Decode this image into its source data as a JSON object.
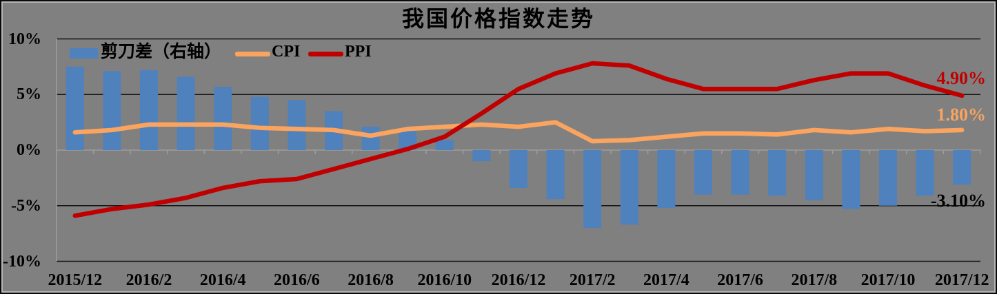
{
  "title": "我国价格指数走势",
  "colors": {
    "background": "#808080",
    "bar": "#4F81BD",
    "cpi": "#FAA45F",
    "ppi": "#C00000",
    "gridline": "#141414",
    "zero_axis": "#9E9E9E",
    "text": "#000000"
  },
  "legend": {
    "items": [
      {
        "label": "剪刀差（右轴）",
        "type": "bar",
        "color": "#4F81BD"
      },
      {
        "label": "CPI",
        "type": "line",
        "color": "#FAA45F"
      },
      {
        "label": "PPI",
        "type": "line",
        "color": "#C00000"
      }
    ]
  },
  "end_labels": {
    "ppi": {
      "text": "4.90%",
      "color": "#C00000"
    },
    "cpi": {
      "text": "1.80%",
      "color": "#FAA45F"
    },
    "scissors": {
      "text": "-3.10%",
      "color": "#000000"
    }
  },
  "chart_data": {
    "type": "combo",
    "title": "我国价格指数走势",
    "x": [
      "2015/12",
      "2016/1",
      "2016/2",
      "2016/3",
      "2016/4",
      "2016/5",
      "2016/6",
      "2016/7",
      "2016/8",
      "2016/9",
      "2016/10",
      "2016/11",
      "2016/12",
      "2017/1",
      "2017/2",
      "2017/3",
      "2017/4",
      "2017/5",
      "2017/6",
      "2017/7",
      "2017/8",
      "2017/9",
      "2017/10",
      "2017/11",
      "2017/12"
    ],
    "x_tick_labels": [
      "2015/12",
      "2016/2",
      "2016/4",
      "2016/6",
      "2016/8",
      "2016/10",
      "2016/12",
      "2017/2",
      "2017/4",
      "2017/6",
      "2017/8",
      "2017/10",
      "2017/12"
    ],
    "y_axis": {
      "tick_labels": [
        "10%",
        "5%",
        "0%",
        "-5%",
        "-10%"
      ],
      "tick_values": [
        10,
        5,
        0,
        -5,
        -10
      ],
      "range": [
        -10,
        10
      ],
      "grid": true
    },
    "legend_position": "top-left-inside",
    "series": [
      {
        "name": "剪刀差（右轴）",
        "type": "bar",
        "axis": "right",
        "color": "#4F81BD",
        "values": [
          7.5,
          7.1,
          7.2,
          6.6,
          5.7,
          4.8,
          4.5,
          3.5,
          2.1,
          1.8,
          0.9,
          -1.0,
          -3.4,
          -4.4,
          -7.0,
          -6.7,
          -5.2,
          -4.0,
          -4.0,
          -4.1,
          -4.5,
          -5.3,
          -5.0,
          -4.1,
          -3.1
        ]
      },
      {
        "name": "CPI",
        "type": "line",
        "axis": "left",
        "color": "#FAA45F",
        "values": [
          1.6,
          1.8,
          2.3,
          2.3,
          2.3,
          2.0,
          1.9,
          1.8,
          1.3,
          1.9,
          2.1,
          2.3,
          2.1,
          2.5,
          0.8,
          0.9,
          1.2,
          1.5,
          1.5,
          1.4,
          1.8,
          1.6,
          1.9,
          1.7,
          1.8
        ]
      },
      {
        "name": "PPI",
        "type": "line",
        "axis": "left",
        "color": "#C00000",
        "values": [
          -5.9,
          -5.3,
          -4.9,
          -4.3,
          -3.4,
          -2.8,
          -2.6,
          -1.7,
          -0.8,
          0.1,
          1.2,
          3.3,
          5.5,
          6.9,
          7.8,
          7.6,
          6.4,
          5.5,
          5.5,
          5.5,
          6.3,
          6.9,
          6.9,
          5.8,
          4.9
        ]
      }
    ]
  }
}
